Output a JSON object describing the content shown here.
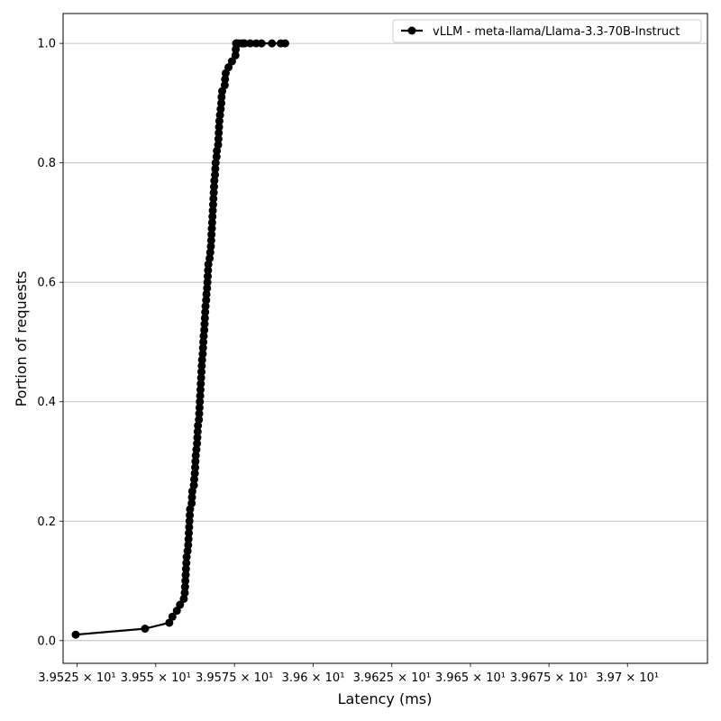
{
  "chart_data": {
    "type": "line",
    "xlabel": "Latency (ms)",
    "ylabel": "Portion of requests",
    "xscale": "log",
    "xlim": [
      39.5206,
      39.7255
    ],
    "ylim": [
      -0.038,
      1.05
    ],
    "grid": "y",
    "legend": {
      "placement": "top-right"
    },
    "x_ticks": [
      {
        "value": 39.525,
        "label": "3.9525 × 10¹"
      },
      {
        "value": 39.55,
        "label": "3.955 × 10¹"
      },
      {
        "value": 39.575,
        "label": "3.9575 × 10¹"
      },
      {
        "value": 39.6,
        "label": "3.96 × 10¹"
      },
      {
        "value": 39.625,
        "label": "3.9625 × 10¹"
      },
      {
        "value": 39.65,
        "label": "3.965 × 10¹"
      },
      {
        "value": 39.675,
        "label": "3.9675 × 10¹"
      },
      {
        "value": 39.7,
        "label": "3.97 × 10¹"
      }
    ],
    "y_ticks": [
      {
        "value": 0.0,
        "label": "0.0"
      },
      {
        "value": 0.2,
        "label": "0.2"
      },
      {
        "value": 0.4,
        "label": "0.4"
      },
      {
        "value": 0.6,
        "label": "0.6"
      },
      {
        "value": 0.8,
        "label": "0.8"
      },
      {
        "value": 1.0,
        "label": "1.0"
      }
    ],
    "series": [
      {
        "name": "vLLM - meta-llama/Llama-3.3-70B-Instruct",
        "color": "#000000",
        "marker": "circle",
        "x": [
          39.5246,
          39.5466,
          39.5543,
          39.5553,
          39.5567,
          39.5577,
          39.5589,
          39.5592,
          39.5593,
          39.5594,
          39.5595,
          39.5596,
          39.5597,
          39.5598,
          39.5601,
          39.5603,
          39.5604,
          39.5605,
          39.5606,
          39.5607,
          39.5608,
          39.5609,
          39.5614,
          39.5615,
          39.5616,
          39.5621,
          39.5622,
          39.5624,
          39.5625,
          39.5626,
          39.5627,
          39.5629,
          39.5631,
          39.5632,
          39.5633,
          39.5634,
          39.5637,
          39.5638,
          39.5639,
          39.564,
          39.5641,
          39.5642,
          39.5643,
          39.5644,
          39.5645,
          39.5646,
          39.5647,
          39.5649,
          39.565,
          39.5651,
          39.5652,
          39.5654,
          39.5655,
          39.5656,
          39.5657,
          39.5658,
          39.566,
          39.5661,
          39.5663,
          39.5664,
          39.5665,
          39.5666,
          39.5667,
          39.5671,
          39.5673,
          39.5675,
          39.5676,
          39.5677,
          39.5678,
          39.5679,
          39.568,
          39.5681,
          39.5682,
          39.5683,
          39.5684,
          39.5685,
          39.5686,
          39.5688,
          39.5689,
          39.569,
          39.5693,
          39.5694,
          39.5698,
          39.5699,
          39.57,
          39.5701,
          39.5702,
          39.5704,
          39.5706,
          39.5708,
          39.5709,
          39.5711,
          39.5719,
          39.572,
          39.5722,
          39.5731,
          39.5742,
          39.5753,
          39.5754,
          39.5755,
          39.5756,
          39.5757,
          39.5763,
          39.5774,
          39.578,
          39.5782,
          39.58,
          39.5819,
          39.5836,
          39.5869,
          39.5897,
          39.5911
        ],
        "y": [
          0.01,
          0.02,
          0.03,
          0.04,
          0.05,
          0.06,
          0.07,
          0.08,
          0.09,
          0.1,
          0.11,
          0.12,
          0.13,
          0.14,
          0.15,
          0.16,
          0.17,
          0.18,
          0.19,
          0.2,
          0.21,
          0.22,
          0.23,
          0.24,
          0.25,
          0.26,
          0.27,
          0.28,
          0.29,
          0.3,
          0.31,
          0.32,
          0.33,
          0.34,
          0.35,
          0.36,
          0.37,
          0.38,
          0.39,
          0.4,
          0.41,
          0.42,
          0.43,
          0.44,
          0.45,
          0.46,
          0.47,
          0.48,
          0.49,
          0.5,
          0.51,
          0.52,
          0.53,
          0.54,
          0.55,
          0.56,
          0.57,
          0.58,
          0.59,
          0.6,
          0.61,
          0.62,
          0.63,
          0.64,
          0.65,
          0.66,
          0.67,
          0.68,
          0.69,
          0.7,
          0.71,
          0.72,
          0.73,
          0.74,
          0.75,
          0.76,
          0.77,
          0.78,
          0.79,
          0.8,
          0.81,
          0.82,
          0.83,
          0.84,
          0.85,
          0.86,
          0.87,
          0.88,
          0.89,
          0.9,
          0.91,
          0.92,
          0.93,
          0.94,
          0.95,
          0.96,
          0.97,
          0.98,
          0.99,
          1.0,
          1.0,
          1.0,
          1.0,
          1.0,
          1.0,
          1.0,
          1.0,
          1.0,
          1.0,
          1.0,
          1.0,
          1.0
        ]
      }
    ]
  }
}
